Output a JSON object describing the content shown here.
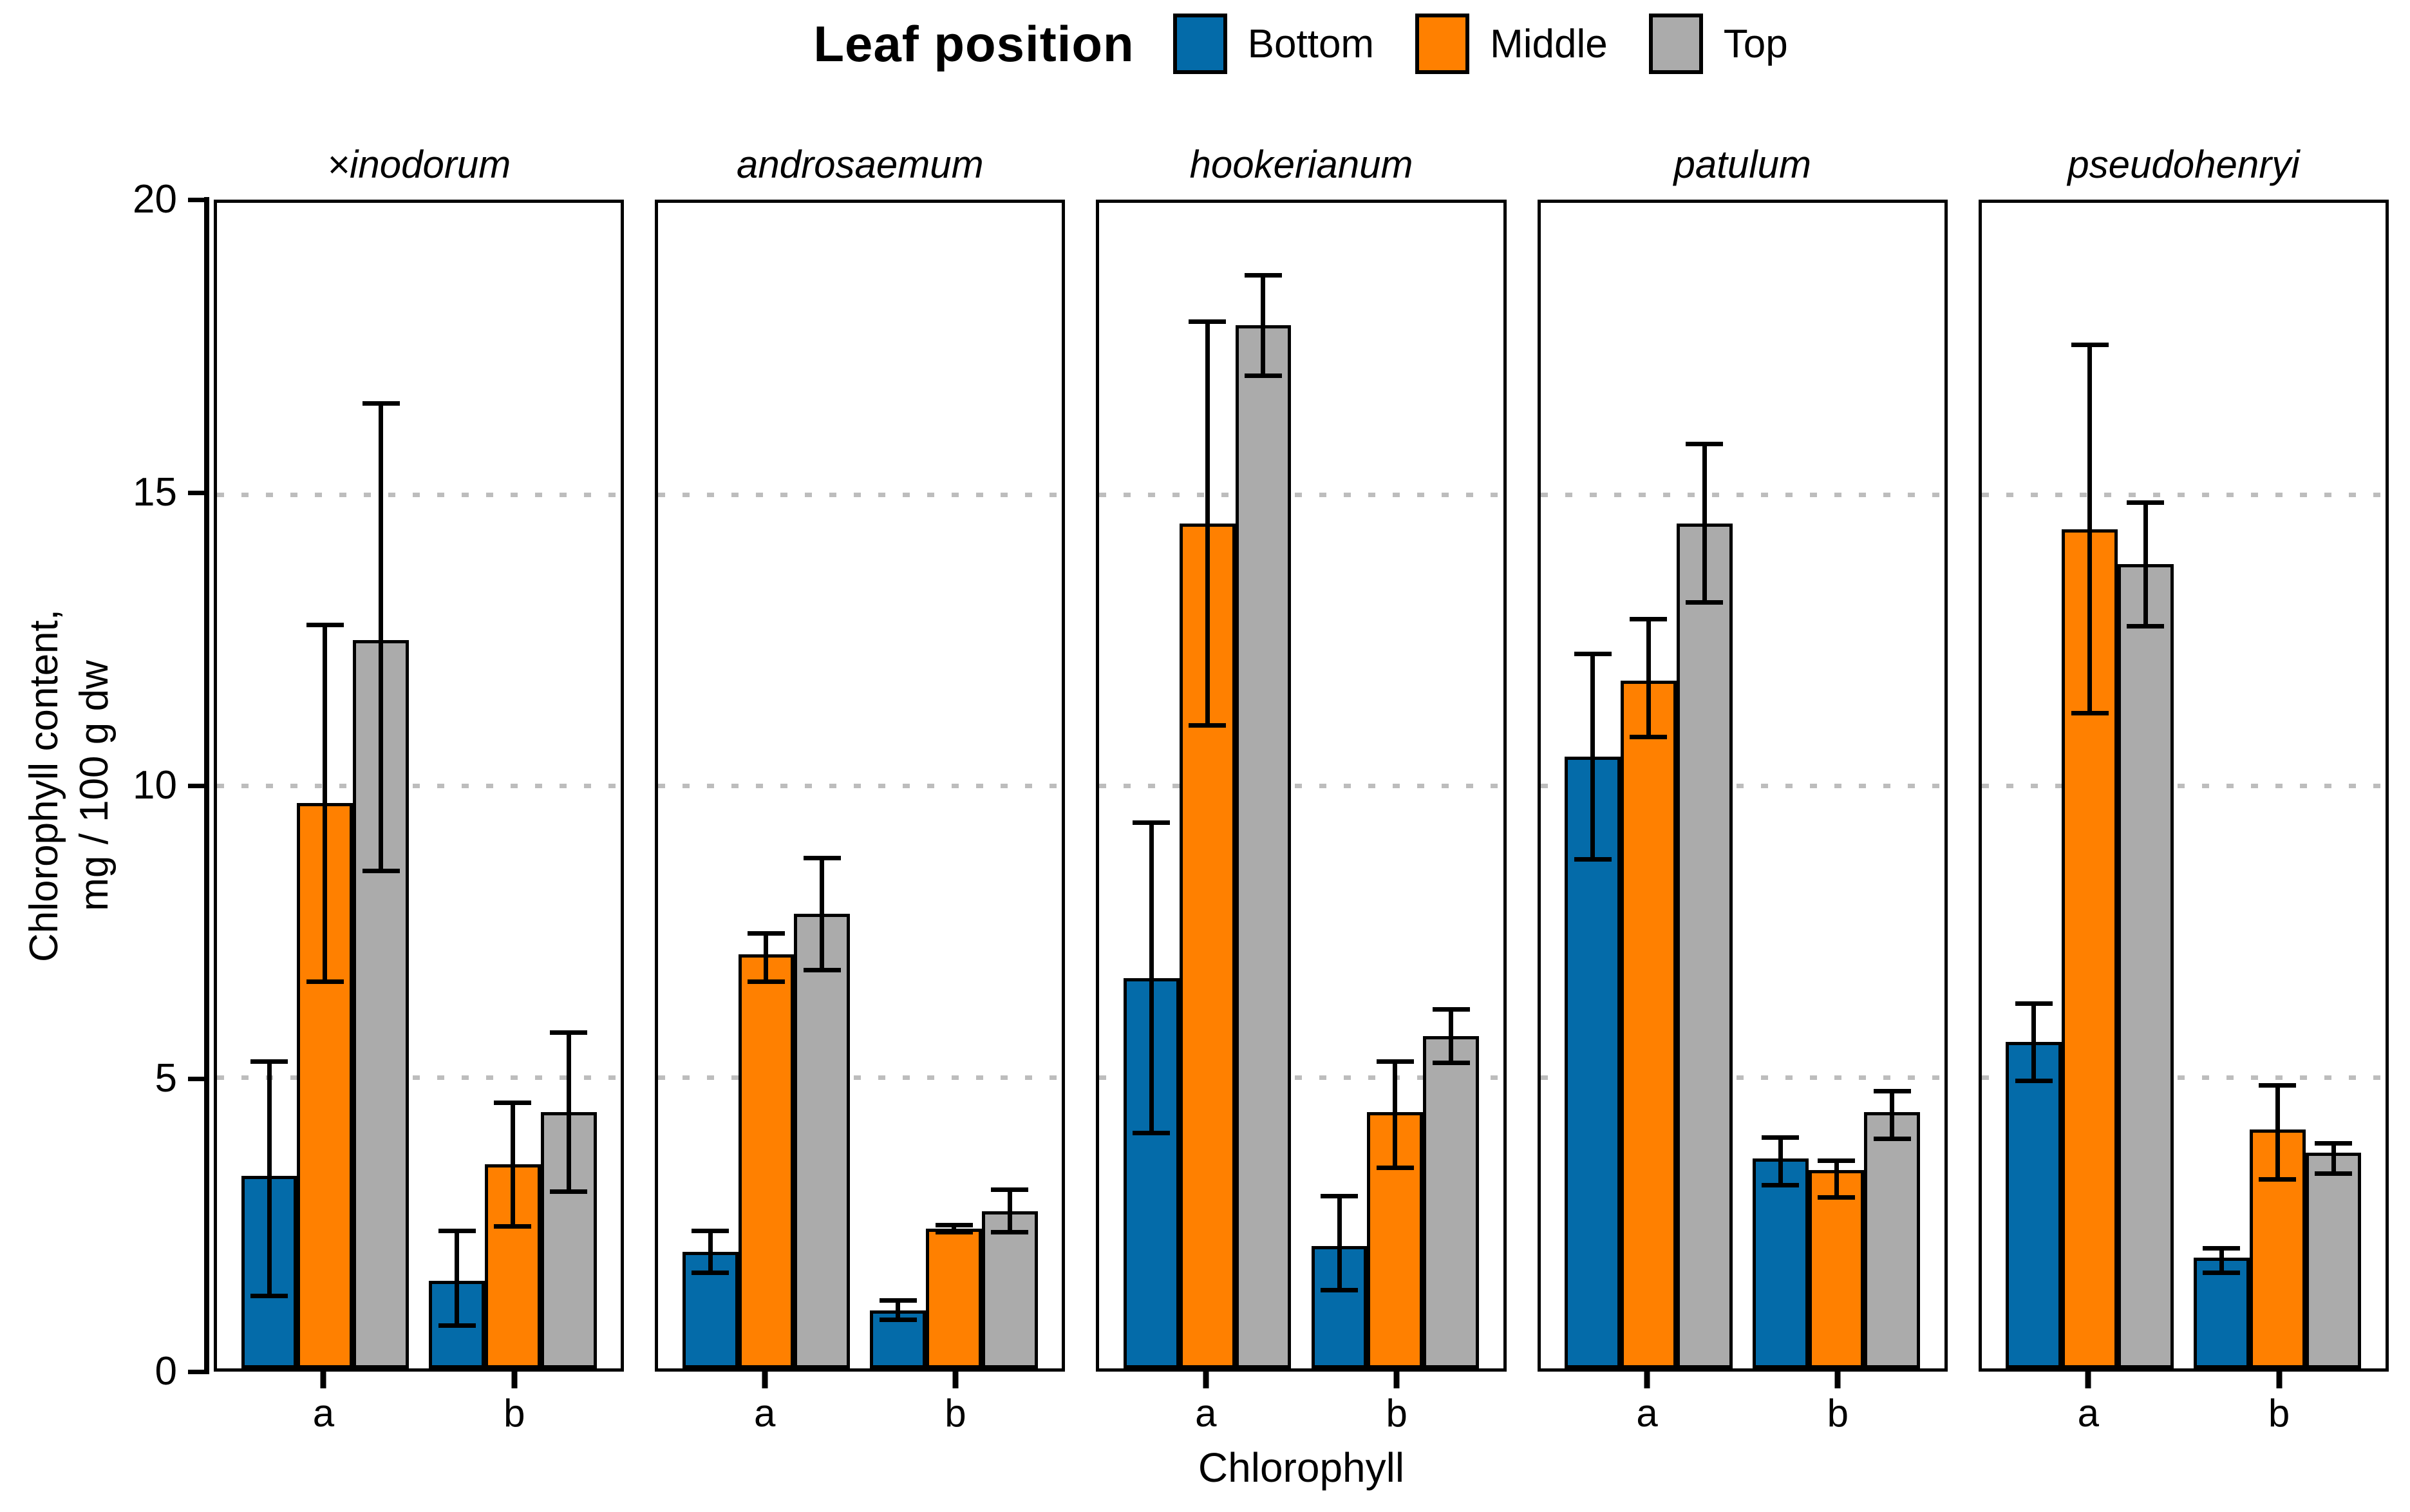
{
  "chart_data": {
    "type": "bar",
    "legend": {
      "title": "Leaf position",
      "entries": [
        {
          "label": "Bottom",
          "color": "#046BA9"
        },
        {
          "label": "Middle",
          "color": "#FF8000"
        },
        {
          "label": "Top",
          "color": "#ABABAB"
        }
      ],
      "position": "top"
    },
    "xlabel": "Chlorophyll",
    "ylabel_lines": [
      "Chlorophyll content,",
      "mg / 100 g dw"
    ],
    "ylim": [
      0,
      20
    ],
    "yticks": [
      0,
      5,
      10,
      15,
      20
    ],
    "gridlines_at": [
      5,
      10,
      15
    ],
    "grid": "dotted",
    "categories": [
      "a",
      "b"
    ],
    "series_order": [
      "Bottom",
      "Middle",
      "Top"
    ],
    "error_bars": true,
    "facets": [
      {
        "label": "×inodorum",
        "values": {
          "a": [
            {
              "v": 3.3,
              "lo": 1.2,
              "hi": 5.3
            },
            {
              "v": 9.7,
              "lo": 6.6,
              "hi": 12.8
            },
            {
              "v": 12.5,
              "lo": 8.5,
              "hi": 16.6
            }
          ],
          "b": [
            {
              "v": 1.5,
              "lo": 0.7,
              "hi": 2.4
            },
            {
              "v": 3.5,
              "lo": 2.4,
              "hi": 4.6
            },
            {
              "v": 4.4,
              "lo": 3.0,
              "hi": 5.8
            }
          ]
        }
      },
      {
        "label": "androsaemum",
        "values": {
          "a": [
            {
              "v": 2.0,
              "lo": 1.6,
              "hi": 2.4
            },
            {
              "v": 7.1,
              "lo": 6.6,
              "hi": 7.5
            },
            {
              "v": 7.8,
              "lo": 6.8,
              "hi": 8.8
            }
          ],
          "b": [
            {
              "v": 1.0,
              "lo": 0.8,
              "hi": 1.2
            },
            {
              "v": 2.4,
              "lo": 2.3,
              "hi": 2.5
            },
            {
              "v": 2.7,
              "lo": 2.3,
              "hi": 3.1
            }
          ]
        }
      },
      {
        "label": "hookerianum",
        "values": {
          "a": [
            {
              "v": 6.7,
              "lo": 4.0,
              "hi": 9.4
            },
            {
              "v": 14.5,
              "lo": 11.0,
              "hi": 18.0
            },
            {
              "v": 17.9,
              "lo": 17.0,
              "hi": 18.8
            }
          ],
          "b": [
            {
              "v": 2.1,
              "lo": 1.3,
              "hi": 3.0
            },
            {
              "v": 4.4,
              "lo": 3.4,
              "hi": 5.3
            },
            {
              "v": 5.7,
              "lo": 5.2,
              "hi": 6.2
            }
          ]
        }
      },
      {
        "label": "patulum",
        "values": {
          "a": [
            {
              "v": 10.5,
              "lo": 8.7,
              "hi": 12.3
            },
            {
              "v": 11.8,
              "lo": 10.8,
              "hi": 12.9
            },
            {
              "v": 14.5,
              "lo": 13.1,
              "hi": 15.9
            }
          ],
          "b": [
            {
              "v": 3.6,
              "lo": 3.1,
              "hi": 4.0
            },
            {
              "v": 3.4,
              "lo": 2.9,
              "hi": 3.6
            },
            {
              "v": 4.4,
              "lo": 3.9,
              "hi": 4.8
            }
          ]
        }
      },
      {
        "label": "pseudohenryi",
        "values": {
          "a": [
            {
              "v": 5.6,
              "lo": 4.9,
              "hi": 6.3
            },
            {
              "v": 14.4,
              "lo": 11.2,
              "hi": 17.6
            },
            {
              "v": 13.8,
              "lo": 12.7,
              "hi": 14.9
            }
          ],
          "b": [
            {
              "v": 1.9,
              "lo": 1.6,
              "hi": 2.1
            },
            {
              "v": 4.1,
              "lo": 3.2,
              "hi": 4.9
            },
            {
              "v": 3.7,
              "lo": 3.3,
              "hi": 3.9
            }
          ]
        }
      }
    ]
  }
}
